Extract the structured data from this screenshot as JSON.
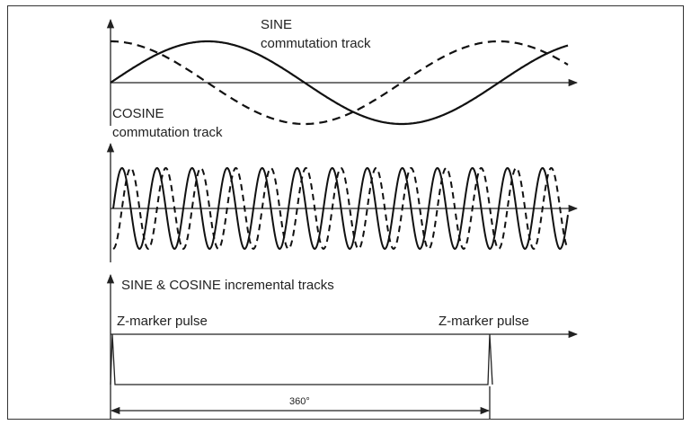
{
  "commutation": {
    "sine_label": [
      "SINE",
      "commutation track"
    ],
    "cosine_label": [
      "COSINE",
      "commutation track"
    ]
  },
  "incremental": {
    "label": "SINE & COSINE incremental tracks"
  },
  "marker": {
    "pulse_labels": [
      "Z-marker pulse",
      "Z-marker pulse"
    ],
    "span_label": "360°"
  }
}
